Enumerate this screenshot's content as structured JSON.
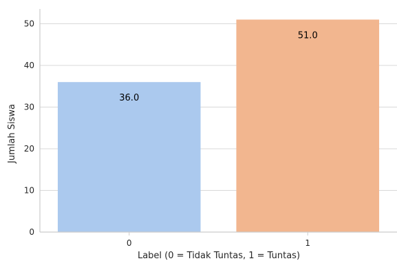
{
  "chart_data": {
    "type": "bar",
    "categories": [
      "0",
      "1"
    ],
    "values": [
      36.0,
      51.0
    ],
    "data_labels": [
      "36.0",
      "51.0"
    ],
    "colors": [
      "#abc9ee",
      "#f2b68f"
    ],
    "title": "",
    "xlabel": "Label (0 = Tidak Tuntas, 1 = Tuntas)",
    "ylabel": "Jumlah Siswa",
    "ylim": [
      0,
      53.55
    ],
    "yticks": [
      0,
      10,
      20,
      30,
      40,
      50
    ],
    "grid": "y",
    "legend": "none"
  }
}
